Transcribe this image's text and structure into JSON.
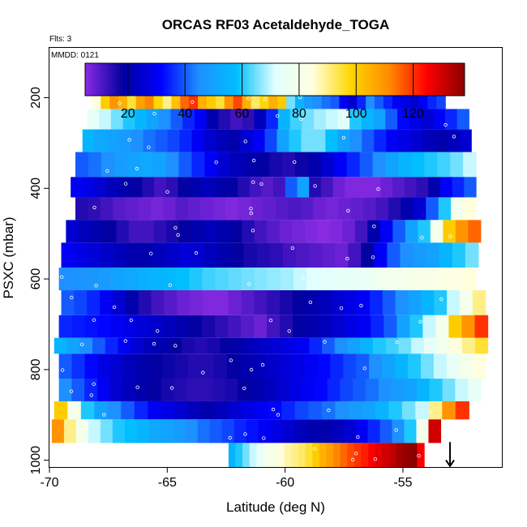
{
  "chart_data": {
    "type": "heatmap",
    "title": "ORCAS RF03 Acetaldehyde_TOGA",
    "corner_label": "Flts: 3",
    "date_label": "MMDD: 0121",
    "xlabel": "Latitude (deg N)",
    "ylabel": "PSXC (mbar)",
    "xlim": [
      -70,
      -50.8
    ],
    "ylim": [
      1015,
      90
    ],
    "x_ticks": [
      -70,
      -65,
      -60,
      -55
    ],
    "x_tick_labels": [
      "-70",
      "-65",
      "-60",
      "-55"
    ],
    "y_ticks": [
      200,
      400,
      600,
      800,
      1000
    ],
    "y_tick_labels": [
      "200",
      "400",
      "600",
      "800",
      "1000"
    ],
    "colorbar": {
      "range": [
        5,
        138
      ],
      "ticks": [
        20,
        40,
        60,
        80,
        100,
        120
      ],
      "tick_labels": [
        "20",
        "40",
        "60",
        "80",
        "100",
        "120"
      ],
      "colors": [
        "#8a2be2",
        "#0000a0",
        "#0000ff",
        "#1e90ff",
        "#00bfff",
        "#e0ffff",
        "#ffffe0",
        "#ffd700",
        "#ff8c00",
        "#ff0000",
        "#8b0000"
      ]
    },
    "arrow_marker": {
      "lat": -53,
      "label": "down-arrow"
    },
    "layers": [
      {
        "p_top": 178,
        "p_bot": 225,
        "x_start": -68.2,
        "x_end": -53.2,
        "values": [
          85,
          100,
          110,
          105,
          95,
          108,
          112,
          98,
          90,
          102,
          115,
          120,
          105,
          100,
          95,
          110,
          118,
          105,
          92,
          98,
          105,
          100,
          65,
          55,
          48,
          45,
          42,
          40,
          30,
          25,
          35,
          45,
          40,
          35,
          30,
          28,
          25,
          30,
          35,
          38
        ]
      },
      {
        "p_top": 225,
        "p_bot": 270,
        "x_start": -68.4,
        "x_end": -52.2,
        "values": [
          75,
          70,
          65,
          60,
          55,
          50,
          45,
          40,
          35,
          30,
          20,
          15,
          12,
          14,
          22,
          35,
          55,
          62,
          65,
          68,
          70,
          72,
          60,
          55,
          50,
          40,
          32,
          28,
          25,
          30,
          35,
          40
        ]
      },
      {
        "p_top": 270,
        "p_bot": 320,
        "x_start": -68.6,
        "x_end": -52.1,
        "values": [
          55,
          52,
          50,
          48,
          45,
          42,
          40,
          38,
          35,
          30,
          25,
          22,
          20,
          25,
          30,
          38,
          50,
          60,
          65,
          65,
          58,
          50,
          45,
          40,
          35,
          30,
          28,
          25,
          22,
          20,
          22,
          25
        ]
      },
      {
        "p_top": 320,
        "p_bot": 375,
        "x_start": -68.9,
        "x_end": -51.9,
        "values": [
          40,
          42,
          45,
          48,
          50,
          52,
          50,
          45,
          40,
          35,
          30,
          25,
          22,
          20,
          18,
          16,
          15,
          17,
          20,
          25,
          30,
          35,
          40,
          45,
          50,
          55,
          58,
          60,
          62,
          65,
          70
        ]
      },
      {
        "p_top": 375,
        "p_bot": 420,
        "x_start": -69.1,
        "x_end": -51.9,
        "values": [
          30,
          28,
          25,
          22,
          20,
          18,
          15,
          12,
          14,
          18,
          20,
          22,
          20,
          18,
          15,
          12,
          10,
          12,
          40,
          50,
          15,
          12,
          8,
          6,
          6,
          6,
          8,
          10,
          12,
          14,
          20,
          30,
          35,
          40
        ]
      },
      {
        "p_top": 420,
        "p_bot": 470,
        "x_start": -68.9,
        "x_end": -51.9,
        "values": [
          15,
          14,
          12,
          10,
          9,
          8,
          7,
          8,
          10,
          9,
          8,
          7,
          6,
          7,
          8,
          9,
          10,
          11,
          10,
          8,
          7,
          8,
          9,
          10,
          12,
          15,
          20,
          25,
          40,
          60,
          80,
          85
        ]
      },
      {
        "p_top": 470,
        "p_bot": 520,
        "x_start": -69.3,
        "x_end": -51.7,
        "values": [
          25,
          22,
          20,
          18,
          15,
          12,
          12,
          14,
          16,
          18,
          20,
          22,
          20,
          18,
          15,
          12,
          10,
          8,
          7,
          6,
          5,
          6,
          8,
          12,
          20,
          30,
          40,
          50,
          60,
          80,
          100,
          110,
          115
        ]
      },
      {
        "p_top": 520,
        "p_bot": 575,
        "x_start": -69.5,
        "x_end": -51.8,
        "values": [
          30,
          28,
          26,
          24,
          22,
          20,
          20,
          22,
          24,
          26,
          25,
          22,
          20,
          18,
          16,
          15,
          14,
          12,
          11,
          10,
          9,
          8,
          12,
          18,
          30,
          40,
          45,
          48,
          50,
          55,
          60,
          65
        ]
      },
      {
        "p_top": 575,
        "p_bot": 625,
        "x_start": -69.6,
        "x_end": -51.9,
        "values": [
          45,
          46,
          47,
          48,
          50,
          52,
          54,
          55,
          56,
          58,
          60,
          62,
          63,
          64,
          65,
          66,
          67,
          68,
          70,
          72,
          73,
          74,
          75,
          76,
          78,
          80,
          80,
          82,
          82,
          83,
          84,
          85
        ]
      },
      {
        "p_top": 625,
        "p_bot": 680,
        "x_start": -69.5,
        "x_end": -51.5,
        "values": [
          40,
          38,
          35,
          30,
          25,
          20,
          15,
          12,
          10,
          8,
          7,
          6,
          6,
          8,
          10,
          12,
          14,
          16,
          18,
          20,
          22,
          25,
          28,
          30,
          35,
          40,
          45,
          50,
          55,
          60,
          70,
          80,
          90
        ]
      },
      {
        "p_top": 680,
        "p_bot": 730,
        "x_start": -69.6,
        "x_end": -51.4,
        "values": [
          35,
          34,
          33,
          32,
          30,
          28,
          26,
          24,
          22,
          20,
          18,
          16,
          14,
          12,
          10,
          8,
          12,
          15,
          18,
          20,
          22,
          25,
          28,
          30,
          35,
          40,
          50,
          60,
          70,
          80,
          100,
          110,
          120
        ]
      },
      {
        "p_top": 730,
        "p_bot": 765,
        "x_start": -69.8,
        "x_end": -51.4,
        "values": [
          55,
          50,
          45,
          40,
          35,
          30,
          25,
          22,
          20,
          18,
          16,
          15,
          16,
          18,
          20,
          22,
          24,
          26,
          28,
          30,
          35,
          40,
          45,
          50,
          55,
          60,
          62,
          65,
          70,
          75,
          80,
          85,
          90,
          95
        ]
      },
      {
        "p_top": 765,
        "p_bot": 820,
        "x_start": -69.6,
        "x_end": -51.5,
        "values": [
          40,
          36,
          32,
          28,
          25,
          22,
          20,
          18,
          17,
          16,
          15,
          15,
          16,
          18,
          20,
          22,
          24,
          26,
          28,
          30,
          32,
          35,
          38,
          40,
          45,
          50,
          55,
          60,
          65,
          70,
          75,
          80,
          85
        ]
      },
      {
        "p_top": 820,
        "p_bot": 870,
        "x_start": -69.6,
        "x_end": -51.7,
        "values": [
          45,
          40,
          35,
          30,
          25,
          22,
          20,
          18,
          16,
          15,
          14,
          14,
          15,
          16,
          18,
          20,
          22,
          25,
          28,
          30,
          32,
          35,
          38,
          40,
          42,
          45,
          48,
          50,
          55,
          60,
          65,
          70,
          75
        ]
      },
      {
        "p_top": 870,
        "p_bot": 910,
        "x_start": -69.8,
        "x_end": -52.2,
        "values": [
          100,
          80,
          60,
          50,
          45,
          40,
          35,
          30,
          28,
          25,
          22,
          20,
          22,
          25,
          28,
          30,
          32,
          35,
          38,
          40,
          42,
          45,
          48,
          50,
          55,
          60,
          65,
          70,
          90,
          110,
          120
        ]
      },
      {
        "p_top": 910,
        "p_bot": 962,
        "x_start": -69.9,
        "x_end": -53.4,
        "values": [
          110,
          90,
          80,
          70,
          65,
          60,
          58,
          55,
          52,
          50,
          48,
          45,
          42,
          40,
          38,
          35,
          33,
          30,
          28,
          25,
          22,
          20,
          20,
          22,
          25,
          30,
          35,
          40,
          45,
          60,
          80,
          130
        ]
      },
      {
        "p_top": 962,
        "p_bot": 1015,
        "x_start": -62.4,
        "x_end": -54.1,
        "values": [
          55,
          60,
          65,
          70,
          75,
          80,
          82,
          85,
          88,
          90,
          92,
          95,
          100,
          105,
          108,
          112,
          115,
          118,
          120,
          122,
          125,
          128,
          130,
          132,
          135,
          137,
          138,
          125
        ]
      }
    ],
    "samples_note": "open circles mark sampled points along the flight track"
  }
}
